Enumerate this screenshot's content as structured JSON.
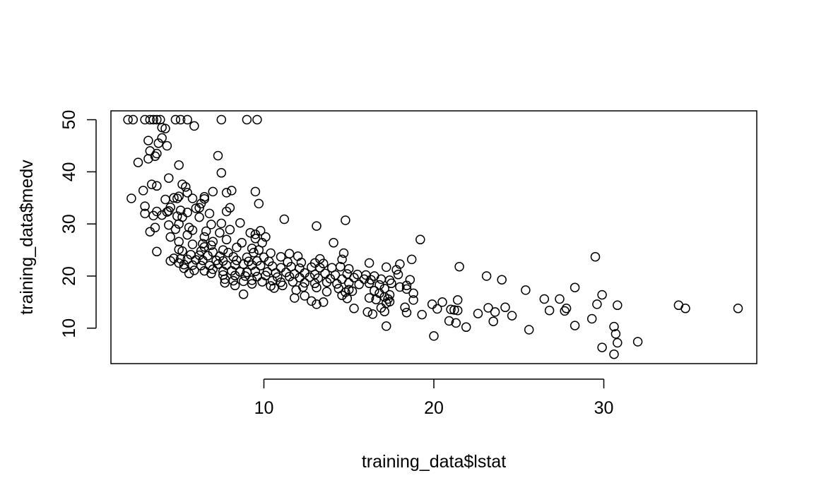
{
  "chart_data": {
    "type": "scatter",
    "title": "",
    "xlabel": "training_data$lstat",
    "ylabel": "training_data$medv",
    "xlim": [
      1.0,
      39.0
    ],
    "ylim": [
      3.2,
      51.7
    ],
    "x_ticks": [
      10,
      20,
      30
    ],
    "y_ticks": [
      10,
      20,
      30,
      40,
      50
    ],
    "x_tick_labels": [
      "10",
      "20",
      "30"
    ],
    "y_tick_labels": [
      "10",
      "20",
      "30",
      "40",
      "50"
    ],
    "grid": false,
    "legend": "none",
    "marker": "open-circle",
    "colors": {
      "points": "#000000",
      "axes": "#000000",
      "background": "#ffffff"
    },
    "points": [
      [
        2.0,
        50
      ],
      [
        2.3,
        50
      ],
      [
        3.0,
        50
      ],
      [
        3.3,
        50
      ],
      [
        3.5,
        50
      ],
      [
        3.7,
        50
      ],
      [
        3.9,
        50
      ],
      [
        4.8,
        50
      ],
      [
        5.1,
        50
      ],
      [
        5.5,
        50
      ],
      [
        7.5,
        50
      ],
      [
        9.0,
        50
      ],
      [
        9.6,
        50
      ],
      [
        5.9,
        48.8
      ],
      [
        4.0,
        48.5
      ],
      [
        4.2,
        48.3
      ],
      [
        4.0,
        46.5
      ],
      [
        3.2,
        46.0
      ],
      [
        3.8,
        45.5
      ],
      [
        4.3,
        45.0
      ],
      [
        3.3,
        44.0
      ],
      [
        3.7,
        43.5
      ],
      [
        7.3,
        43.1
      ],
      [
        3.6,
        43.0
      ],
      [
        3.2,
        42.5
      ],
      [
        2.6,
        41.8
      ],
      [
        5.0,
        41.3
      ],
      [
        7.5,
        39.8
      ],
      [
        4.4,
        38.8
      ],
      [
        3.4,
        37.6
      ],
      [
        5.2,
        37.6
      ],
      [
        3.7,
        37.3
      ],
      [
        5.4,
        37.1
      ],
      [
        2.9,
        36.4
      ],
      [
        9.5,
        36.2
      ],
      [
        7.0,
        36.2
      ],
      [
        8.1,
        36.4
      ],
      [
        5.5,
        36.0
      ],
      [
        7.8,
        36.0
      ],
      [
        6.5,
        35.2
      ],
      [
        5.0,
        35.3
      ],
      [
        4.7,
        35.0
      ],
      [
        6.5,
        34.8
      ],
      [
        2.2,
        34.9
      ],
      [
        5.8,
        34.9
      ],
      [
        4.9,
        34.9
      ],
      [
        4.2,
        34.7
      ],
      [
        6.3,
        33.9
      ],
      [
        9.7,
        33.9
      ],
      [
        3.0,
        33.4
      ],
      [
        4.5,
        33.2
      ],
      [
        6.2,
        33.1
      ],
      [
        6.0,
        33.0
      ],
      [
        8.0,
        33.1
      ],
      [
        4.4,
        32.5
      ],
      [
        5.1,
        32.6
      ],
      [
        7.8,
        32.4
      ],
      [
        3.7,
        32.4
      ],
      [
        3.0,
        32.0
      ],
      [
        4.3,
        32.3
      ],
      [
        5.5,
        32.2
      ],
      [
        6.8,
        32.0
      ],
      [
        4.9,
        31.5
      ],
      [
        4.0,
        31.7
      ],
      [
        3.5,
        31.6
      ],
      [
        5.2,
        31.3
      ],
      [
        6.2,
        31.3
      ],
      [
        11.2,
        30.9
      ],
      [
        14.8,
        30.7
      ],
      [
        8.6,
        30.2
      ],
      [
        7.5,
        30.1
      ],
      [
        5.0,
        30.0
      ],
      [
        4.4,
        29.8
      ],
      [
        6.9,
        29.9
      ],
      [
        13.1,
        29.6
      ],
      [
        3.6,
        29.3
      ],
      [
        5.6,
        29.3
      ],
      [
        4.8,
        29.0
      ],
      [
        5.8,
        28.8
      ],
      [
        6.6,
        28.6
      ],
      [
        8.0,
        28.9
      ],
      [
        7.4,
        28.3
      ],
      [
        9.8,
        28.7
      ],
      [
        9.2,
        28.3
      ],
      [
        9.5,
        28.0
      ],
      [
        10.1,
        27.5
      ],
      [
        3.3,
        28.5
      ],
      [
        5.5,
        27.9
      ],
      [
        6.5,
        27.5
      ],
      [
        4.5,
        27.5
      ],
      [
        9.5,
        27.2
      ],
      [
        7.8,
        27.0
      ],
      [
        19.2,
        27.0
      ],
      [
        5.0,
        26.6
      ],
      [
        7.0,
        26.6
      ],
      [
        8.7,
        26.4
      ],
      [
        9.9,
        26.4
      ],
      [
        6.4,
        26.2
      ],
      [
        14.1,
        26.4
      ],
      [
        5.8,
        26.1
      ],
      [
        6.9,
        25.9
      ],
      [
        6.5,
        25.6
      ],
      [
        8.4,
        25.5
      ],
      [
        9.3,
        25.3
      ],
      [
        9.7,
        25.0
      ],
      [
        7.6,
        25.0
      ],
      [
        3.7,
        24.7
      ],
      [
        5.0,
        25.1
      ],
      [
        5.2,
        24.8
      ],
      [
        6.3,
        24.8
      ],
      [
        7.0,
        24.6
      ],
      [
        7.9,
        24.5
      ],
      [
        9.4,
        24.5
      ],
      [
        10.4,
        24.4
      ],
      [
        11.5,
        24.3
      ],
      [
        14.7,
        24.4
      ],
      [
        5.7,
        24.1
      ],
      [
        6.2,
        24.0
      ],
      [
        6.7,
        23.9
      ],
      [
        7.4,
        23.8
      ],
      [
        8.2,
        23.7
      ],
      [
        9.0,
        23.6
      ],
      [
        10.0,
        23.6
      ],
      [
        11.0,
        23.7
      ],
      [
        12.0,
        23.8
      ],
      [
        13.3,
        23.3
      ],
      [
        14.6,
        23.2
      ],
      [
        18.7,
        23.2
      ],
      [
        29.5,
        23.7
      ],
      [
        4.7,
        23.4
      ],
      [
        5.1,
        23.3
      ],
      [
        5.5,
        23.2
      ],
      [
        6.0,
        23.1
      ],
      [
        6.4,
        23.0
      ],
      [
        7.2,
        23.0
      ],
      [
        7.6,
        22.9
      ],
      [
        8.4,
        23.0
      ],
      [
        9.1,
        22.8
      ],
      [
        9.6,
        22.9
      ],
      [
        10.3,
        22.8
      ],
      [
        11.4,
        22.7
      ],
      [
        12.2,
        22.6
      ],
      [
        13.0,
        22.5
      ],
      [
        13.5,
        22.4
      ],
      [
        16.2,
        22.5
      ],
      [
        18.0,
        22.3
      ],
      [
        21.5,
        21.8
      ],
      [
        4.5,
        22.9
      ],
      [
        5.0,
        22.5
      ],
      [
        5.3,
        22.2
      ],
      [
        5.8,
        22.1
      ],
      [
        6.3,
        22.0
      ],
      [
        6.8,
        22.0
      ],
      [
        7.3,
        22.3
      ],
      [
        7.8,
        22.1
      ],
      [
        8.3,
        22.2
      ],
      [
        8.8,
        22.3
      ],
      [
        9.3,
        22.1
      ],
      [
        9.8,
        22.0
      ],
      [
        10.5,
        21.9
      ],
      [
        11.0,
        21.6
      ],
      [
        11.6,
        21.8
      ],
      [
        12.1,
        21.5
      ],
      [
        12.8,
        21.7
      ],
      [
        13.3,
        21.6
      ],
      [
        14.0,
        21.6
      ],
      [
        14.5,
        21.8
      ],
      [
        15.0,
        21.4
      ],
      [
        17.2,
        21.7
      ],
      [
        17.8,
        21.2
      ],
      [
        5.3,
        21.5
      ],
      [
        5.9,
        21.1
      ],
      [
        6.5,
        21.0
      ],
      [
        7.0,
        21.3
      ],
      [
        7.6,
        20.9
      ],
      [
        8.1,
        21.0
      ],
      [
        8.6,
        20.8
      ],
      [
        9.0,
        20.7
      ],
      [
        9.5,
        20.9
      ],
      [
        10.2,
        20.8
      ],
      [
        10.7,
        20.6
      ],
      [
        11.3,
        20.7
      ],
      [
        11.8,
        20.4
      ],
      [
        12.4,
        20.6
      ],
      [
        13.0,
        20.3
      ],
      [
        13.6,
        20.5
      ],
      [
        14.2,
        20.2
      ],
      [
        14.9,
        20.4
      ],
      [
        15.5,
        20.3
      ],
      [
        16.0,
        20.2
      ],
      [
        16.5,
        20.0
      ],
      [
        17.9,
        20.3
      ],
      [
        23.1,
        20.0
      ],
      [
        5.6,
        20.5
      ],
      [
        6.9,
        20.5
      ],
      [
        7.6,
        20.2
      ],
      [
        8.3,
        20.1
      ],
      [
        8.9,
        20.0
      ],
      [
        9.6,
        19.9
      ],
      [
        10.1,
        20.1
      ],
      [
        10.8,
        19.8
      ],
      [
        11.5,
        19.9
      ],
      [
        12.1,
        19.7
      ],
      [
        12.7,
        19.8
      ],
      [
        13.2,
        19.6
      ],
      [
        13.9,
        19.5
      ],
      [
        14.6,
        19.4
      ],
      [
        15.3,
        19.7
      ],
      [
        15.9,
        19.4
      ],
      [
        16.3,
        19.3
      ],
      [
        16.9,
        19.4
      ],
      [
        17.4,
        19.2
      ],
      [
        18.6,
        19.3
      ],
      [
        24.0,
        19.3
      ],
      [
        7.7,
        19.4
      ],
      [
        8.2,
        19.1
      ],
      [
        8.8,
        19.0
      ],
      [
        9.3,
        19.2
      ],
      [
        9.9,
        18.9
      ],
      [
        10.5,
        19.1
      ],
      [
        11.0,
        18.8
      ],
      [
        11.7,
        18.9
      ],
      [
        12.4,
        18.7
      ],
      [
        13.0,
        18.6
      ],
      [
        13.7,
        18.8
      ],
      [
        14.3,
        18.5
      ],
      [
        15.0,
        18.7
      ],
      [
        15.6,
        18.4
      ],
      [
        16.2,
        18.6
      ],
      [
        16.8,
        18.3
      ],
      [
        17.5,
        18.6
      ],
      [
        18.4,
        18.2
      ],
      [
        7.7,
        18.7
      ],
      [
        8.3,
        18.2
      ],
      [
        9.3,
        18.5
      ],
      [
        10.4,
        18.1
      ],
      [
        11.1,
        18.2
      ],
      [
        12.3,
        17.9
      ],
      [
        13.1,
        17.8
      ],
      [
        14.4,
        17.6
      ],
      [
        15.0,
        17.4
      ],
      [
        16.5,
        17.2
      ],
      [
        17.1,
        17.6
      ],
      [
        18.0,
        17.9
      ],
      [
        18.4,
        17.5
      ],
      [
        28.3,
        17.8
      ],
      [
        10.6,
        17.7
      ],
      [
        11.9,
        17.3
      ],
      [
        13.7,
        17.0
      ],
      [
        14.8,
        16.9
      ],
      [
        15.2,
        17.1
      ],
      [
        16.8,
        16.7
      ],
      [
        17.4,
        16.4
      ],
      [
        18.8,
        16.7
      ],
      [
        25.4,
        17.3
      ],
      [
        29.9,
        16.4
      ],
      [
        8.8,
        16.5
      ],
      [
        12.4,
        16.2
      ],
      [
        14.6,
        16.3
      ],
      [
        16.2,
        15.8
      ],
      [
        17.1,
        16.0
      ],
      [
        11.8,
        15.8
      ],
      [
        14.9,
        15.7
      ],
      [
        16.6,
        15.5
      ],
      [
        17.3,
        15.6
      ],
      [
        18.8,
        15.4
      ],
      [
        21.4,
        15.4
      ],
      [
        26.5,
        15.6
      ],
      [
        27.4,
        15.6
      ],
      [
        12.8,
        15.2
      ],
      [
        13.5,
        15.0
      ],
      [
        17.4,
        15.1
      ],
      [
        20.5,
        15.0
      ],
      [
        13.1,
        14.6
      ],
      [
        17.2,
        14.8
      ],
      [
        19.9,
        14.6
      ],
      [
        29.6,
        14.6
      ],
      [
        30.8,
        14.4
      ],
      [
        34.4,
        14.4
      ],
      [
        15.3,
        13.8
      ],
      [
        16.9,
        13.9
      ],
      [
        18.3,
        14.0
      ],
      [
        20.2,
        13.7
      ],
      [
        21.0,
        13.6
      ],
      [
        21.2,
        13.5
      ],
      [
        21.4,
        13.4
      ],
      [
        23.2,
        13.9
      ],
      [
        24.2,
        14.0
      ],
      [
        27.8,
        13.8
      ],
      [
        34.8,
        13.8
      ],
      [
        37.9,
        13.8
      ],
      [
        16.1,
        13.1
      ],
      [
        17.1,
        13.2
      ],
      [
        18.4,
        13.0
      ],
      [
        22.6,
        12.8
      ],
      [
        23.6,
        13.1
      ],
      [
        26.8,
        13.4
      ],
      [
        27.7,
        13.3
      ],
      [
        16.4,
        12.7
      ],
      [
        19.3,
        12.6
      ],
      [
        24.6,
        12.4
      ],
      [
        20.9,
        11.4
      ],
      [
        21.3,
        11.0
      ],
      [
        23.5,
        11.3
      ],
      [
        29.3,
        11.8
      ],
      [
        17.2,
        10.4
      ],
      [
        21.9,
        10.2
      ],
      [
        28.3,
        10.5
      ],
      [
        30.6,
        10.3
      ],
      [
        25.6,
        9.7
      ],
      [
        30.7,
        8.9
      ],
      [
        20.0,
        8.5
      ],
      [
        32.0,
        7.4
      ],
      [
        30.8,
        7.2
      ],
      [
        29.9,
        6.3
      ],
      [
        30.6,
        5.0
      ]
    ]
  }
}
